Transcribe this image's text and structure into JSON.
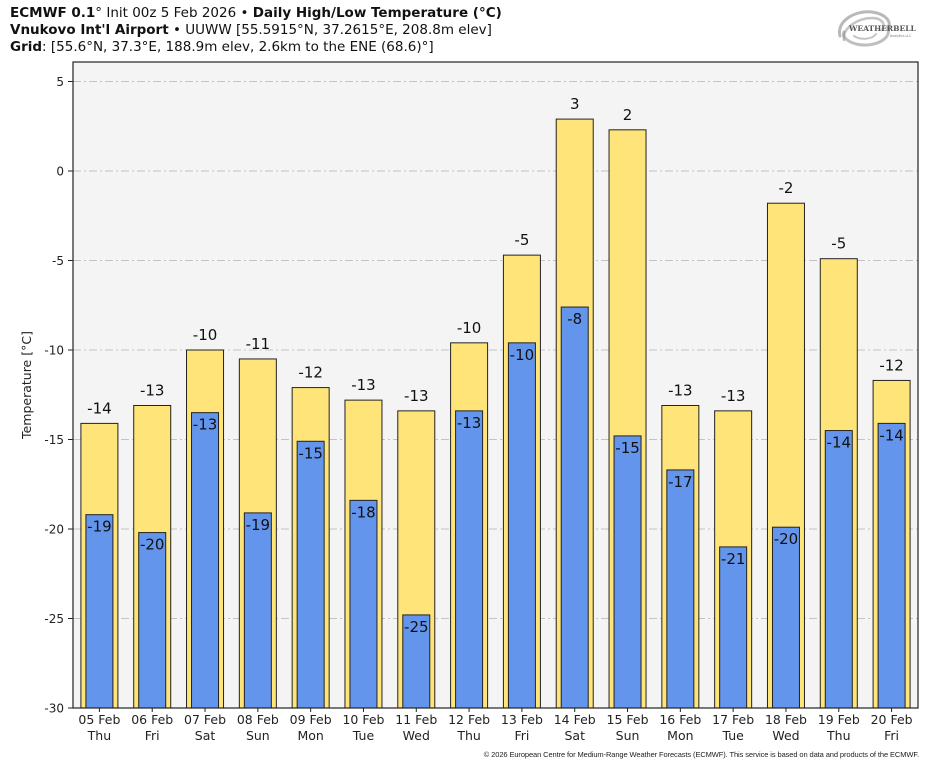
{
  "header": {
    "line1_bold": "ECMWF 0.1",
    "line1_deg": "°",
    "line1_text": " Init 00z 5 Feb 2026 • ",
    "line1_title": "Daily High/Low Temperature (°C)",
    "line2_bold": "Vnukovo Int'l Airport",
    "line2_text": " • UUWW [55.5915°N, 37.2615°E, 208.8m elev]",
    "line3_bold": "Grid",
    "line3_text": ": [55.6°N, 37.3°E, 188.9m elev, 2.6km to the ENE (68.6)°]"
  },
  "logo": {
    "text_main": "WEATHERBELL",
    "text_sub": "Analytics LLC",
    "icon": "swirl-logo-icon"
  },
  "copyright": "© 2026 European Centre for Medium-Range Weather Forecasts (ECMWF). This service is based on data and products of the ECMWF.",
  "chart_data": {
    "type": "bar",
    "title": "Daily High/Low Temperature (°C)",
    "xlabel": "",
    "ylabel": "Temperature [°C]",
    "ylim": [
      -30,
      6
    ],
    "yticks": [
      5,
      0,
      -5,
      -10,
      -15,
      -20,
      -25,
      -30
    ],
    "grid": true,
    "legend": "none",
    "categories": [
      "05 Feb",
      "06 Feb",
      "07 Feb",
      "08 Feb",
      "09 Feb",
      "10 Feb",
      "11 Feb",
      "12 Feb",
      "13 Feb",
      "14 Feb",
      "15 Feb",
      "16 Feb",
      "17 Feb",
      "18 Feb",
      "19 Feb",
      "20 Feb"
    ],
    "weekdays": [
      "Thu",
      "Fri",
      "Sat",
      "Sun",
      "Mon",
      "Tue",
      "Wed",
      "Thu",
      "Fri",
      "Sat",
      "Sun",
      "Mon",
      "Tue",
      "Wed",
      "Thu",
      "Fri"
    ],
    "series": [
      {
        "name": "High",
        "color": "#ffe47a",
        "values": [
          -14.1,
          -13.1,
          -10.0,
          -10.5,
          -12.1,
          -12.8,
          -13.4,
          -9.6,
          -4.7,
          2.9,
          2.3,
          -13.1,
          -13.4,
          -1.8,
          -4.9,
          -11.7
        ],
        "labels": [
          "-14",
          "-13",
          "-10",
          "-11",
          "-12",
          "-13",
          "-13",
          "-10",
          "-5",
          "3",
          "2",
          "-13",
          "-13",
          "-2",
          "-5",
          "-12"
        ]
      },
      {
        "name": "Low",
        "color": "#6495ed",
        "values": [
          -19.2,
          -20.2,
          -13.5,
          -19.1,
          -15.1,
          -18.4,
          -24.8,
          -13.4,
          -9.6,
          -7.6,
          -14.8,
          -16.7,
          -21.0,
          -19.9,
          -14.5,
          -14.1
        ],
        "labels": [
          "-19",
          "-20",
          "-13",
          "-19",
          "-15",
          "-18",
          "-25",
          "-13",
          "-10",
          "-8",
          "-15",
          "-17",
          "-21",
          "-20",
          "-14",
          "-14"
        ]
      }
    ]
  }
}
